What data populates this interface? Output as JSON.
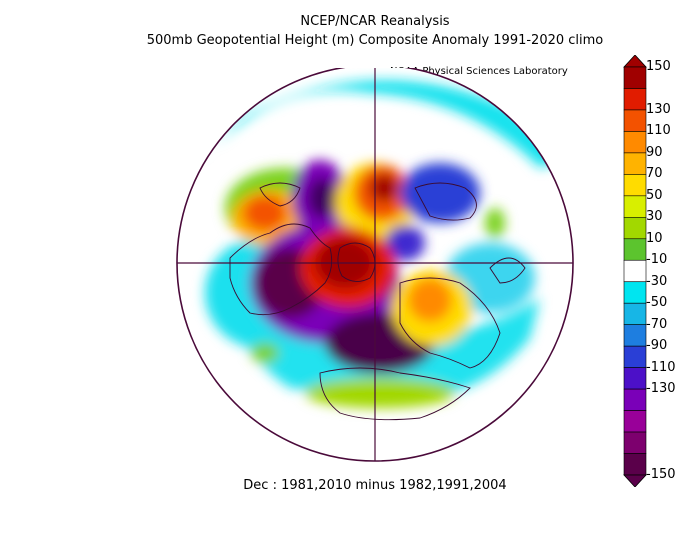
{
  "title_line1": "NCEP/NCAR Reanalysis",
  "title_line2": "500mb Geopotential Height (m) Composite Anomaly 1991-2020 climo",
  "credit": "NOAA Physical Sciences Laboratory",
  "subtitle": "Dec : 1981,2010 minus 1982,1991,2004",
  "colorbar": {
    "levels": [
      150,
      130,
      110,
      90,
      70,
      50,
      30,
      10,
      -10,
      -30,
      -50,
      -70,
      -90,
      -110,
      -130,
      -150
    ],
    "colors": [
      "#a00000",
      "#e11c00",
      "#f35200",
      "#ff8a00",
      "#ffb300",
      "#ffdc00",
      "#d8ef00",
      "#a2d800",
      "#5cc42e",
      "#ffffff",
      "#00e5f0",
      "#17b6e6",
      "#1e7ee0",
      "#2a3fd6",
      "#4c10c8",
      "#7a00b8",
      "#990099",
      "#7d006e",
      "#5a004a"
    ]
  }
}
